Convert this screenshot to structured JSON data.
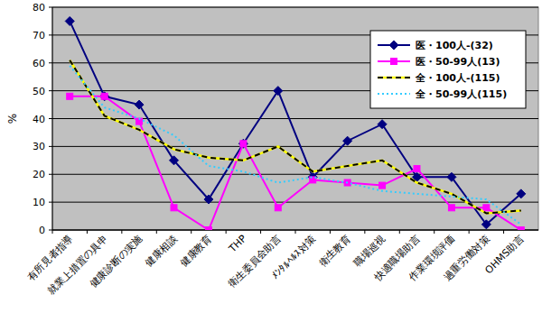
{
  "chart_data": {
    "type": "line",
    "y_label": "%",
    "categories": [
      "有所見者指導",
      "就業上措置の具申",
      "健康診断の実施",
      "健康相談",
      "健康教育",
      "THP",
      "衛生委員会助言",
      "ﾒﾝﾀﾙﾍﾙｽ対策",
      "衛生教育",
      "職場巡視",
      "快適職場助言",
      "作業環境評価",
      "過重労働対策",
      "OHMS助言"
    ],
    "series": [
      {
        "name": "医・100人-(32)",
        "color": "#000080",
        "marker": "diamond",
        "line_style": "solid",
        "values": [
          75,
          48,
          45,
          25,
          11,
          31,
          50,
          19,
          32,
          38,
          19,
          19,
          2,
          13
        ]
      },
      {
        "name": "医・50-99人(13)",
        "color": "#ff00ff",
        "marker": "square",
        "line_style": "solid",
        "values": [
          48,
          48,
          39,
          8,
          0,
          31,
          8,
          18,
          17,
          16,
          22,
          8,
          8,
          0
        ]
      },
      {
        "name": "全・100人-(115)",
        "color": "#000000",
        "marker": "none",
        "line_style": "dashed",
        "values": [
          61,
          41,
          36,
          29,
          26,
          25,
          30,
          21,
          23,
          25,
          17,
          13,
          6,
          7
        ]
      },
      {
        "name": "全・50-99人(115)",
        "color": "#33ccff",
        "marker": "none",
        "line_style": "dotted",
        "values": [
          59,
          44,
          40,
          34,
          23,
          21,
          17,
          19,
          17,
          14,
          13,
          12,
          11,
          2
        ]
      }
    ],
    "ylim": [
      0,
      80
    ],
    "yticks": [
      0,
      10,
      20,
      30,
      40,
      50,
      60,
      70,
      80
    ],
    "grid": true,
    "legend": "top-right"
  }
}
